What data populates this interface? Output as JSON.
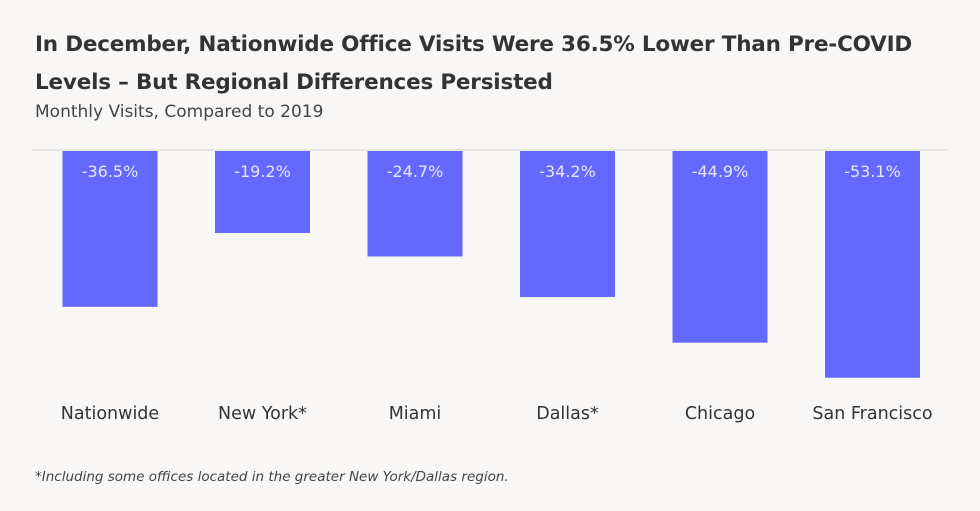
{
  "chart_data": {
    "type": "bar",
    "title": "In December, Nationwide Office Visits Were 36.5% Lower Than Pre-COVID Levels – But Regional Differences Persisted",
    "subtitle": "Monthly Visits, Compared to 2019",
    "categories": [
      "Nationwide",
      "New York*",
      "Miami",
      "Dallas*",
      "Chicago",
      "San Francisco"
    ],
    "values": [
      -36.5,
      -19.2,
      -24.7,
      -34.2,
      -44.9,
      -53.1
    ],
    "data_labels": [
      "-36.5%",
      "-19.2%",
      "-24.7%",
      "-34.2%",
      "-44.9%",
      "-53.1%"
    ],
    "xlabel": "",
    "ylabel": "",
    "ylim": [
      -60,
      0
    ],
    "grid": false,
    "legend": "none",
    "bar_color": "#6369fc",
    "footnote": "*Including some offices located in the greater New York/Dallas region."
  }
}
